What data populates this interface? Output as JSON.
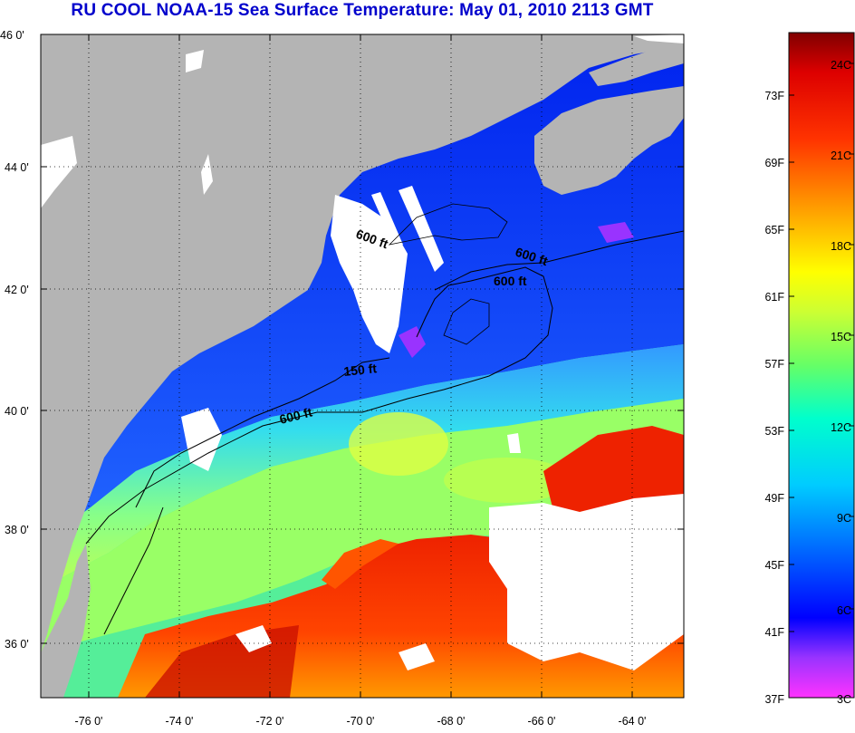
{
  "title": "RU COOL  NOAA-15  Sea Surface Temperature:  May 01, 2010 2113 GMT",
  "lat_ticks": [
    "46 0'",
    "44 0'",
    "42 0'",
    "40 0'",
    "38 0'",
    "36 0'"
  ],
  "lon_ticks": [
    "-76 0'",
    "-74 0'",
    "-72 0'",
    "-70 0'",
    "-68 0'",
    "-66 0'",
    "-64 0'"
  ],
  "contour_labels": [
    "600 ft",
    "600 ft",
    "600 ft",
    "150 ft",
    "600 ft"
  ],
  "colorbar": {
    "fahrenheit": [
      "73F",
      "69F",
      "65F",
      "61F",
      "57F",
      "53F",
      "49F",
      "45F",
      "41F",
      "37F"
    ],
    "celsius": [
      "24C",
      "21C",
      "18C",
      "15C",
      "12C",
      "9C",
      "6C",
      "3C"
    ]
  },
  "colors": {
    "land": "#b4b4b4",
    "cloud": "#ffffff",
    "title": "#0000cc"
  }
}
